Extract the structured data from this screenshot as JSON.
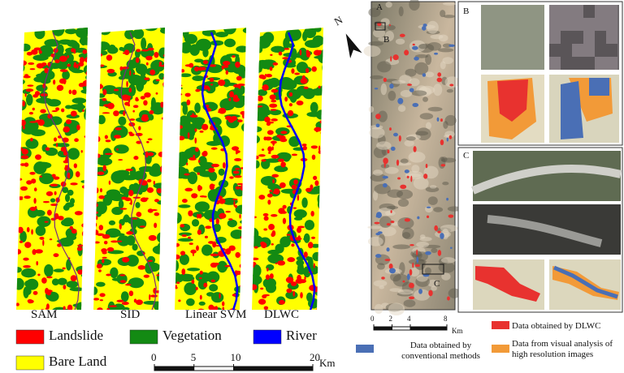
{
  "left_panel": {
    "maps": [
      {
        "label": "SAM"
      },
      {
        "label": "SID"
      },
      {
        "label": "Linear SVM"
      },
      {
        "label": "DLWC"
      }
    ],
    "north": "N",
    "legend": [
      {
        "label": "Landslide",
        "color": "#ff0000"
      },
      {
        "label": "Vegetation",
        "color": "#138a13"
      },
      {
        "label": "River",
        "color": "#0000ff"
      },
      {
        "label": "Bare Land",
        "color": "#ffff00"
      }
    ],
    "scale_bar": {
      "ticks": [
        0,
        5,
        10,
        20
      ],
      "unit": "Km"
    }
  },
  "right_panel": {
    "labels": {
      "a": "A",
      "b": "B",
      "c": "C"
    },
    "inset_b": "B",
    "inset_c": "C",
    "scale_bar": {
      "ticks": [
        0,
        2,
        4,
        8
      ],
      "unit": "Km"
    },
    "legend": [
      {
        "label": "Data obtained by conventional methods",
        "color": "#4a6fb5"
      },
      {
        "label": "Data obtained by DLWC",
        "color": "#e8322f"
      },
      {
        "label": "Data from visual analysis of high resolution images",
        "color": "#f29a38"
      }
    ]
  }
}
